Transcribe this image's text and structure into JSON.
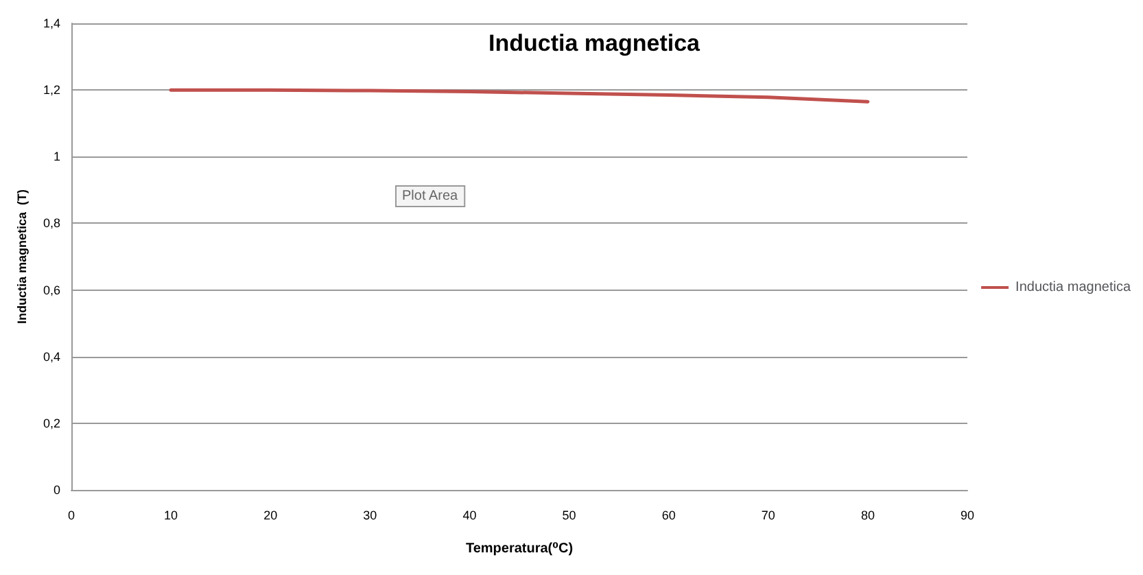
{
  "chart_data": {
    "type": "line",
    "title": "Inductia magnetica",
    "xlabel": "Temperatura(⁰C)",
    "ylabel": "Inductia magnetica  (T)",
    "x": [
      10,
      20,
      30,
      40,
      50,
      60,
      70,
      80
    ],
    "series": [
      {
        "name": "Inductia magnetica",
        "color": "#c0504d",
        "values": [
          1.2,
          1.2,
          1.198,
          1.195,
          1.19,
          1.185,
          1.178,
          1.165
        ]
      }
    ],
    "xlim": [
      0,
      90
    ],
    "xticks": [
      0,
      10,
      20,
      30,
      40,
      50,
      60,
      70,
      80,
      90
    ],
    "ylim": [
      0,
      1.4
    ],
    "yticks": [
      0,
      {
        "value": 0.2,
        "label": "0,2"
      },
      {
        "value": 0.4,
        "label": "0,4"
      },
      {
        "value": 0.6,
        "label": "0,6"
      },
      {
        "value": 0.8,
        "label": "0,8"
      },
      1,
      {
        "value": 1.2,
        "label": "1,2"
      },
      {
        "value": 1.4,
        "label": "1,4"
      }
    ],
    "grid": "y",
    "legend": "right",
    "marker": "none",
    "line_style": "solid",
    "annotations": [
      "Plot Area"
    ]
  }
}
